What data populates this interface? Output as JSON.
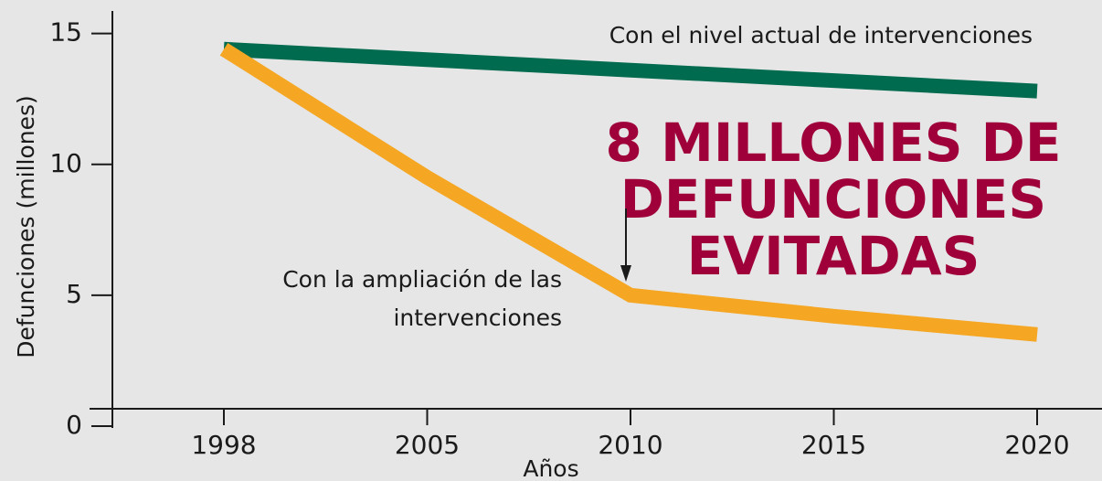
{
  "chart_data": {
    "type": "line",
    "xlabel": "Años",
    "ylabel": "Defunciones (millones)",
    "categories": [
      "1998",
      "2005",
      "2010",
      "2015",
      "2020"
    ],
    "series": [
      {
        "name": "Con el nivel actual de intervenciones",
        "color": "#006b4e",
        "values": [
          14.4,
          14.0,
          13.6,
          13.2,
          12.8
        ]
      },
      {
        "name": "Con la ampliación de las intervenciones",
        "color": "#f5a623",
        "values": [
          14.4,
          9.5,
          5.0,
          4.2,
          3.5
        ]
      }
    ],
    "ylim": [
      0,
      16
    ],
    "yticks": [
      0,
      5,
      10,
      15
    ],
    "annotation": [
      "8 MILLONES DE",
      "DEFUNCIONES",
      "EVITADAS"
    ],
    "orange_label": [
      "Con la ampliación de las",
      "intervenciones"
    ]
  }
}
